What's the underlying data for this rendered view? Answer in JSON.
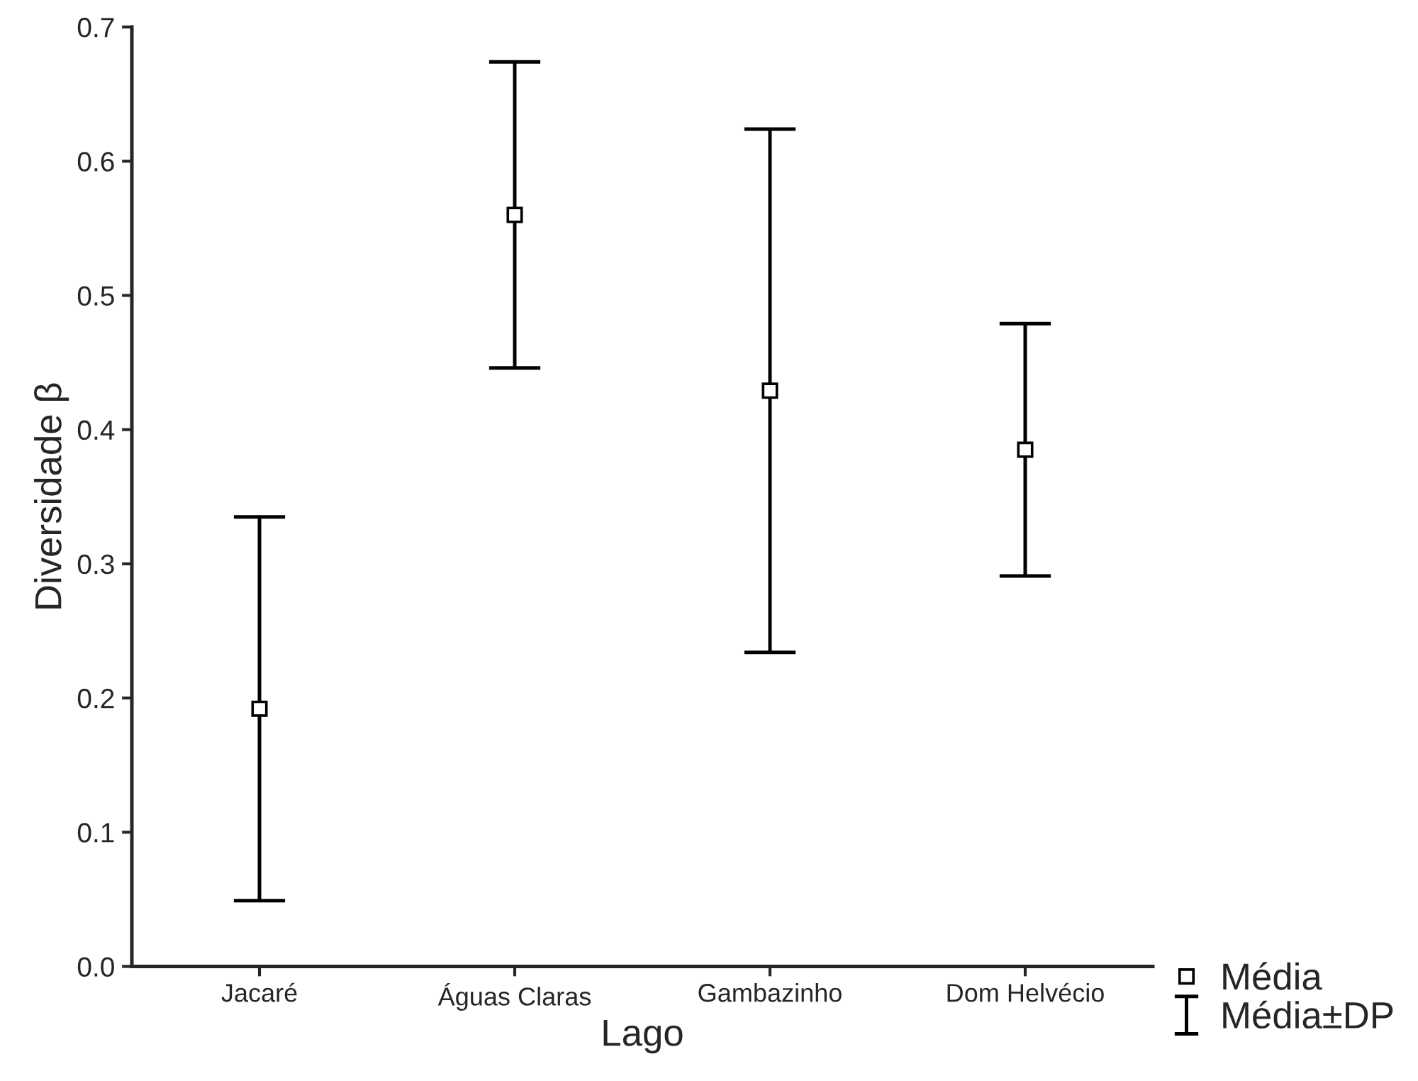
{
  "chart_data": {
    "type": "scatter",
    "xlabel": "Lago",
    "ylabel": "Diversidade β",
    "categories": [
      "Jacaré",
      "Águas Claras",
      "Gambazinho",
      "Dom Helvécio"
    ],
    "series": [
      {
        "name": "Média",
        "color": "#000000",
        "values": [
          0.192,
          0.56,
          0.429,
          0.385
        ],
        "errors": [
          0.143,
          0.114,
          0.195,
          0.094
        ]
      }
    ],
    "annotations": [
      "Média±DP"
    ],
    "ylim": [
      0,
      0.7
    ],
    "yticks": [
      {
        "value": 0,
        "label": "0.0"
      },
      0.1,
      0.2,
      0.3,
      0.4,
      0.5,
      0.6,
      0.7
    ],
    "marker": "square",
    "grid": false,
    "legend": "bottom right"
  }
}
